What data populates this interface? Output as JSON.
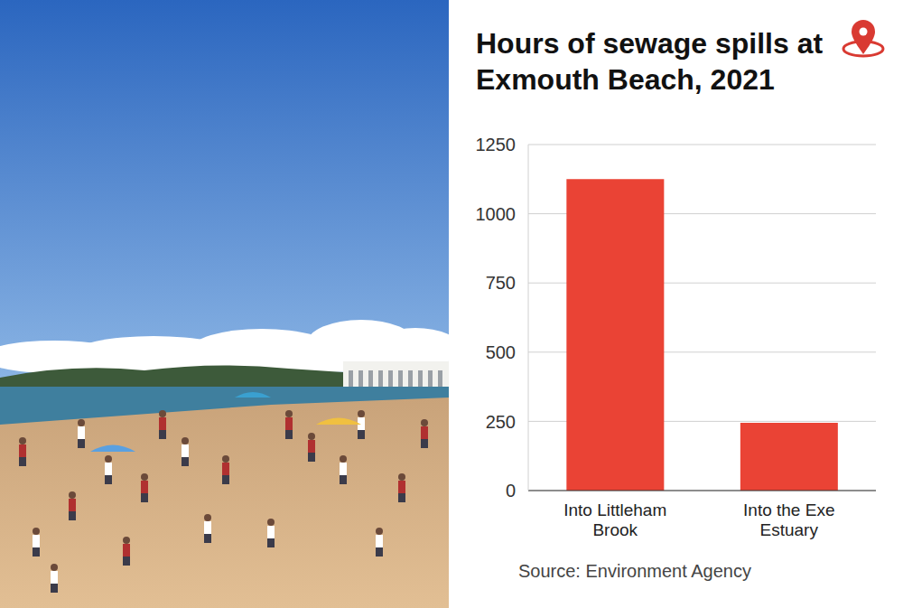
{
  "chart_data": {
    "type": "bar",
    "title": "Hours of sewage spills at Exmouth Beach, 2021",
    "categories": [
      "Into Littleham Brook",
      "Into the Exe Estuary"
    ],
    "values": [
      1125,
      245
    ],
    "color": "#ea4335",
    "ylim": [
      0,
      1250
    ],
    "yticks": [
      0,
      250,
      500,
      750,
      1000,
      1250
    ],
    "grid": true,
    "source": "Source: Environment Agency"
  }
}
